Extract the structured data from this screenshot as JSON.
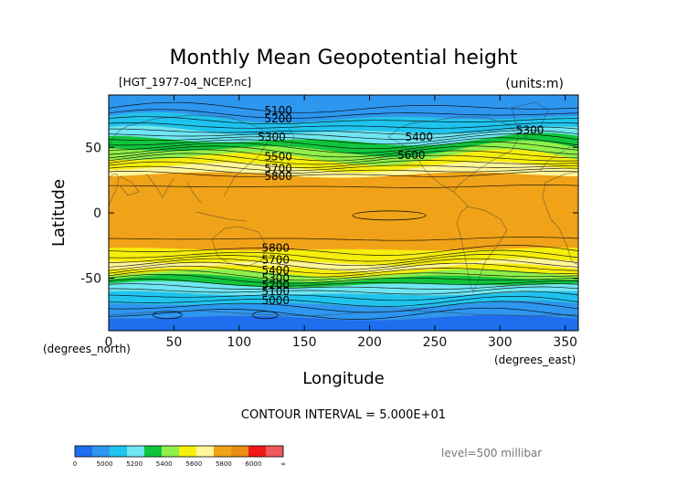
{
  "chart_data": {
    "type": "heatmap",
    "title": "Monthly Mean Geopotential height",
    "file_label": "[HGT_1977-04_NCEP.nc]",
    "units_label": "(units:m)",
    "xlabel": "Longitude",
    "ylabel": "Latitude",
    "x_unit_label": "(degrees_east)",
    "y_unit_label": "(degrees_north)",
    "contour_interval_label": "CONTOUR INTERVAL = 5.000E+01",
    "level_label": "level=500 millibar",
    "xlim": [
      0,
      360
    ],
    "ylim": [
      -90,
      90
    ],
    "x_ticks": [
      0,
      50,
      100,
      150,
      200,
      250,
      300,
      350
    ],
    "y_ticks": [
      50,
      0,
      -50
    ],
    "colorbar": {
      "tick_labels": [
        "0",
        "5000",
        "5200",
        "5400",
        "5600",
        "5800",
        "6000",
        "∞"
      ],
      "colors": [
        "#1e6eee",
        "#2d96ef",
        "#1fc4ee",
        "#6fe6f2",
        "#10c53c",
        "#8ff04a",
        "#f6ee0c",
        "#fff79a",
        "#f0a318",
        "#e98e10",
        "#f21717",
        "#f05a5a"
      ]
    },
    "contour_labels": [
      {
        "text": "5100",
        "lon": 130,
        "lat": 78
      },
      {
        "text": "5200",
        "lon": 130,
        "lat": 72
      },
      {
        "text": "5300",
        "lon": 125,
        "lat": 58
      },
      {
        "text": "5500",
        "lon": 130,
        "lat": 43
      },
      {
        "text": "5700",
        "lon": 130,
        "lat": 34
      },
      {
        "text": "5800",
        "lon": 130,
        "lat": 28
      },
      {
        "text": "5400",
        "lon": 238,
        "lat": 58
      },
      {
        "text": "5600",
        "lon": 232,
        "lat": 44
      },
      {
        "text": "5300",
        "lon": 323,
        "lat": 63
      },
      {
        "text": "5800",
        "lon": 128,
        "lat": -27
      },
      {
        "text": "5700",
        "lon": 128,
        "lat": -36
      },
      {
        "text": "5400",
        "lon": 128,
        "lat": -44
      },
      {
        "text": "5300",
        "lon": 128,
        "lat": -50
      },
      {
        "text": "5200",
        "lon": 128,
        "lat": -55
      },
      {
        "text": "5100",
        "lon": 128,
        "lat": -60
      },
      {
        "text": "5000",
        "lon": 128,
        "lat": -67
      }
    ]
  }
}
